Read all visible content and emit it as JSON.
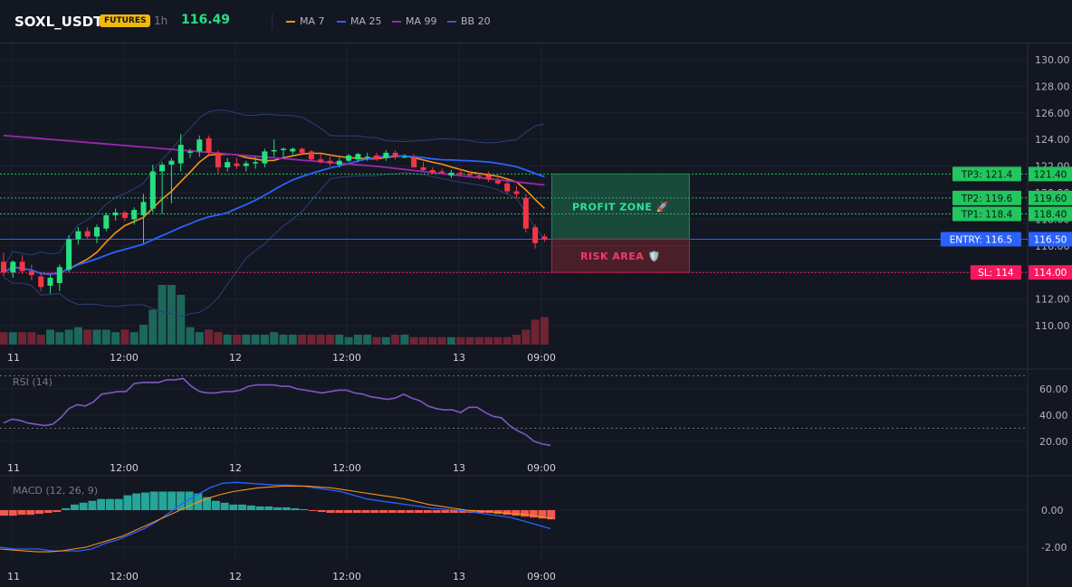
{
  "header": {
    "symbol": "SOXL_USDT",
    "badge": "FUTURES",
    "interval": "1h",
    "price": "116.49",
    "legend": [
      {
        "label": "MA 7",
        "color": "#f7931a"
      },
      {
        "label": "MA 25",
        "color": "#2962ff"
      },
      {
        "label": "MA 99",
        "color": "#9c27b0"
      },
      {
        "label": "BB 20",
        "color": "#3d5aa8"
      }
    ]
  },
  "colors": {
    "up": "#26e07f",
    "down": "#f23645",
    "background": "#131722",
    "grid": "#1e2230",
    "rsi": "#7e57c2",
    "macd": "#2962ff",
    "signal": "#f7931a",
    "entry": "#2962ff",
    "sl": "#f7195f",
    "tp": "#22c55e"
  },
  "time_axis": [
    "11",
    "12:00",
    "12",
    "12:00",
    "13",
    "09:00"
  ],
  "chart_data": [
    {
      "type": "candlestick",
      "ylim": [
        109,
        131
      ],
      "y_ticks": [
        "130.00",
        "128.00",
        "126.00",
        "124.00",
        "122.00",
        "120.00",
        "118.00",
        "116.00",
        "114.00",
        "112.00",
        "110.00"
      ],
      "candles": [
        {
          "o": 114.8,
          "h": 115.5,
          "l": 113.7,
          "c": 114.0
        },
        {
          "o": 114.0,
          "h": 114.9,
          "l": 113.6,
          "c": 114.8
        },
        {
          "o": 114.8,
          "h": 115.3,
          "l": 113.9,
          "c": 114.1
        },
        {
          "o": 114.1,
          "h": 114.6,
          "l": 113.4,
          "c": 113.8
        },
        {
          "o": 113.7,
          "h": 114.0,
          "l": 112.6,
          "c": 112.9
        },
        {
          "o": 113.0,
          "h": 113.8,
          "l": 112.4,
          "c": 113.6
        },
        {
          "o": 113.2,
          "h": 114.6,
          "l": 112.6,
          "c": 114.4
        },
        {
          "o": 114.2,
          "h": 116.8,
          "l": 114.0,
          "c": 116.5
        },
        {
          "o": 116.5,
          "h": 117.4,
          "l": 116.1,
          "c": 117.1
        },
        {
          "o": 117.1,
          "h": 117.4,
          "l": 116.5,
          "c": 116.7
        },
        {
          "o": 116.7,
          "h": 117.6,
          "l": 116.2,
          "c": 117.4
        },
        {
          "o": 117.3,
          "h": 118.5,
          "l": 117.1,
          "c": 118.3
        },
        {
          "o": 118.3,
          "h": 118.8,
          "l": 117.9,
          "c": 118.5
        },
        {
          "o": 118.5,
          "h": 118.6,
          "l": 117.9,
          "c": 118.1
        },
        {
          "o": 118.0,
          "h": 118.9,
          "l": 117.6,
          "c": 118.7
        },
        {
          "o": 118.3,
          "h": 119.9,
          "l": 116.2,
          "c": 119.3
        },
        {
          "o": 118.8,
          "h": 122.1,
          "l": 118.5,
          "c": 121.6
        },
        {
          "o": 121.6,
          "h": 122.3,
          "l": 118.4,
          "c": 122.1
        },
        {
          "o": 122.1,
          "h": 122.6,
          "l": 119.2,
          "c": 122.4
        },
        {
          "o": 122.2,
          "h": 124.4,
          "l": 121.6,
          "c": 123.6
        },
        {
          "o": 123.0,
          "h": 123.3,
          "l": 122.6,
          "c": 123.1
        },
        {
          "o": 123.1,
          "h": 124.3,
          "l": 122.7,
          "c": 124.0
        },
        {
          "o": 124.1,
          "h": 124.3,
          "l": 122.7,
          "c": 123.0
        },
        {
          "o": 123.0,
          "h": 123.2,
          "l": 121.4,
          "c": 121.9
        },
        {
          "o": 121.9,
          "h": 122.6,
          "l": 121.6,
          "c": 122.3
        },
        {
          "o": 122.2,
          "h": 122.6,
          "l": 121.8,
          "c": 122.0
        },
        {
          "o": 122.0,
          "h": 122.4,
          "l": 121.6,
          "c": 122.2
        },
        {
          "o": 122.2,
          "h": 122.7,
          "l": 121.8,
          "c": 122.3
        },
        {
          "o": 122.2,
          "h": 123.3,
          "l": 121.9,
          "c": 123.1
        },
        {
          "o": 123.1,
          "h": 124.0,
          "l": 122.7,
          "c": 123.2
        },
        {
          "o": 123.2,
          "h": 123.4,
          "l": 122.6,
          "c": 123.3
        },
        {
          "o": 123.1,
          "h": 123.4,
          "l": 122.9,
          "c": 123.3
        },
        {
          "o": 123.3,
          "h": 123.4,
          "l": 122.9,
          "c": 123.0
        },
        {
          "o": 123.1,
          "h": 123.2,
          "l": 122.4,
          "c": 122.5
        },
        {
          "o": 122.5,
          "h": 122.9,
          "l": 122.2,
          "c": 122.3
        },
        {
          "o": 122.4,
          "h": 122.7,
          "l": 122.0,
          "c": 122.2
        },
        {
          "o": 122.1,
          "h": 122.6,
          "l": 121.9,
          "c": 122.4
        },
        {
          "o": 122.4,
          "h": 122.9,
          "l": 122.3,
          "c": 122.8
        },
        {
          "o": 122.5,
          "h": 123.0,
          "l": 122.3,
          "c": 122.9
        },
        {
          "o": 122.6,
          "h": 123.0,
          "l": 122.4,
          "c": 122.7
        },
        {
          "o": 122.8,
          "h": 123.0,
          "l": 122.4,
          "c": 122.5
        },
        {
          "o": 122.6,
          "h": 123.2,
          "l": 122.4,
          "c": 123.0
        },
        {
          "o": 123.0,
          "h": 123.2,
          "l": 122.5,
          "c": 122.7
        },
        {
          "o": 122.7,
          "h": 122.9,
          "l": 122.6,
          "c": 122.7
        },
        {
          "o": 122.6,
          "h": 122.9,
          "l": 121.9,
          "c": 121.9
        },
        {
          "o": 121.9,
          "h": 122.3,
          "l": 121.6,
          "c": 121.7
        },
        {
          "o": 121.7,
          "h": 121.9,
          "l": 121.4,
          "c": 121.5
        },
        {
          "o": 121.6,
          "h": 121.8,
          "l": 121.4,
          "c": 121.5
        },
        {
          "o": 121.3,
          "h": 121.7,
          "l": 121.1,
          "c": 121.5
        },
        {
          "o": 121.5,
          "h": 121.8,
          "l": 121.3,
          "c": 121.4
        },
        {
          "o": 121.4,
          "h": 121.6,
          "l": 121.2,
          "c": 121.3
        },
        {
          "o": 121.3,
          "h": 121.5,
          "l": 121.0,
          "c": 121.2
        },
        {
          "o": 121.3,
          "h": 121.6,
          "l": 120.8,
          "c": 121.0
        },
        {
          "o": 120.9,
          "h": 121.4,
          "l": 120.6,
          "c": 120.7
        },
        {
          "o": 120.7,
          "h": 121.0,
          "l": 119.9,
          "c": 120.1
        },
        {
          "o": 120.1,
          "h": 120.5,
          "l": 119.6,
          "c": 119.9
        },
        {
          "o": 119.6,
          "h": 119.9,
          "l": 117.0,
          "c": 117.3
        },
        {
          "o": 117.4,
          "h": 117.6,
          "l": 115.8,
          "c": 116.2
        },
        {
          "o": 116.7,
          "h": 116.9,
          "l": 116.3,
          "c": 116.5
        }
      ],
      "volume": [
        5,
        5,
        5,
        5,
        4,
        6,
        5,
        6,
        7,
        6,
        6,
        6,
        5,
        6,
        5,
        8,
        14,
        24,
        24,
        20,
        7,
        5,
        6,
        5,
        4,
        4,
        4,
        4,
        4,
        5,
        4,
        4,
        4,
        4,
        4,
        4,
        4,
        3,
        4,
        4,
        3,
        3,
        4,
        4,
        3,
        3,
        3,
        3,
        3,
        3,
        3,
        3,
        3,
        3,
        3,
        4,
        6,
        10,
        11
      ],
      "levels": [
        {
          "label": "TP3: 121.4",
          "value": 121.4,
          "price": "121.40",
          "kind": "tp"
        },
        {
          "label": "TP2: 119.6",
          "value": 119.6,
          "price": "119.60",
          "kind": "tp"
        },
        {
          "label": "TP1: 118.4",
          "value": 118.4,
          "price": "118.40",
          "kind": "tp"
        },
        {
          "label": "ENTRY: 116.5",
          "value": 116.5,
          "price": "116.50",
          "kind": "entry"
        },
        {
          "label": "SL: 114",
          "value": 114.0,
          "price": "114.00",
          "kind": "sl"
        }
      ],
      "zones": {
        "profit": "PROFIT ZONE 🚀",
        "risk": "RISK AREA 🛡️"
      }
    },
    {
      "type": "line",
      "title": "RSI (14)",
      "ylim": [
        12,
        75
      ],
      "y_ticks": [
        "60.00",
        "40.00",
        "20.00"
      ],
      "guides": [
        70,
        30
      ],
      "values": [
        34,
        37,
        36,
        34,
        33,
        32,
        33,
        38,
        45,
        48,
        47,
        50,
        56,
        57,
        58,
        58,
        64,
        65,
        65,
        65,
        67,
        67,
        68,
        62,
        58,
        57,
        57,
        58,
        58,
        59,
        62,
        63,
        63,
        63,
        62,
        62,
        60,
        59,
        58,
        57,
        58,
        59,
        59,
        57,
        56,
        54,
        53,
        52,
        53,
        56,
        53,
        51,
        47,
        45,
        44,
        44,
        42,
        46,
        46,
        42,
        39,
        38,
        32,
        28,
        25,
        20,
        18,
        17
      ]
    },
    {
      "type": "bar",
      "title": "MACD (12, 26, 9)",
      "ylim": [
        -3,
        2.6
      ],
      "y_ticks": [
        "0.00",
        "-2.00"
      ],
      "histogram": [
        -0.3,
        -0.3,
        -0.25,
        -0.25,
        -0.2,
        -0.15,
        -0.1,
        0.1,
        0.3,
        0.4,
        0.5,
        0.6,
        0.6,
        0.6,
        0.8,
        0.9,
        0.95,
        1.0,
        1.0,
        1.0,
        1.0,
        1.0,
        0.9,
        0.7,
        0.5,
        0.4,
        0.3,
        0.3,
        0.25,
        0.2,
        0.2,
        0.15,
        0.15,
        0.1,
        0.05,
        -0.05,
        -0.1,
        -0.15,
        -0.15,
        -0.15,
        -0.15,
        -0.15,
        -0.15,
        -0.15,
        -0.15,
        -0.15,
        -0.15,
        -0.15,
        -0.15,
        -0.15,
        -0.15,
        -0.15,
        -0.15,
        -0.15,
        -0.15,
        -0.15,
        -0.2,
        -0.25,
        -0.3,
        -0.35,
        -0.4,
        -0.45,
        -0.5
      ],
      "macd": [
        -2.0,
        -2.1,
        -2.1,
        -2.1,
        -2.2,
        -2.2,
        -2.2,
        -2.1,
        -1.8,
        -1.6,
        -1.3,
        -1.0,
        -0.6,
        -0.1,
        0.4,
        0.8,
        1.2,
        1.45,
        1.5,
        1.45,
        1.4,
        1.35,
        1.35,
        1.3,
        1.2,
        1.1,
        1.0,
        0.8,
        0.6,
        0.5,
        0.4,
        0.3,
        0.2,
        0.1,
        0.05,
        0.0,
        -0.1,
        -0.2,
        -0.3,
        -0.4,
        -0.6,
        -0.8,
        -1.0
      ],
      "signal": [
        -2.1,
        -2.15,
        -2.2,
        -2.25,
        -2.25,
        -2.2,
        -2.1,
        -2.0,
        -1.8,
        -1.6,
        -1.4,
        -1.1,
        -0.8,
        -0.5,
        -0.2,
        0.1,
        0.4,
        0.65,
        0.85,
        1.0,
        1.1,
        1.2,
        1.25,
        1.3,
        1.3,
        1.3,
        1.25,
        1.2,
        1.1,
        1.0,
        0.9,
        0.8,
        0.7,
        0.6,
        0.45,
        0.3,
        0.2,
        0.1,
        0.0,
        -0.05,
        -0.1,
        -0.15,
        -0.2,
        -0.25,
        -0.35,
        -0.45
      ]
    }
  ]
}
